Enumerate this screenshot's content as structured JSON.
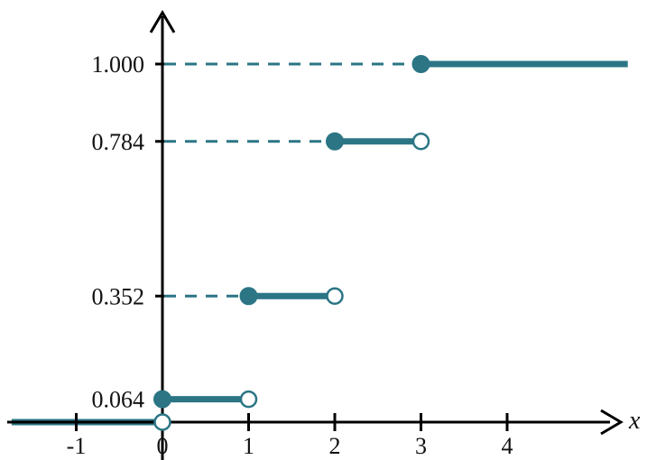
{
  "chart_data": {
    "type": "line",
    "title": "",
    "xlabel": "x",
    "ylabel": "",
    "x_ticks": [
      "-1",
      "0",
      "1",
      "2",
      "3",
      "4"
    ],
    "y_ticks": [
      "0.064",
      "0.352",
      "0.784",
      "1.000"
    ],
    "xlim": [
      -1.75,
      5.4
    ],
    "ylim": [
      -0.11,
      1.22
    ],
    "grid": false,
    "series": [
      {
        "step_segments": [
          {
            "x_start": -1.75,
            "x_end": 0,
            "y": 0,
            "closed_start": false,
            "open_end": true
          },
          {
            "x_start": 0,
            "x_end": 1,
            "y": 0.064,
            "closed_start": true,
            "open_end": true
          },
          {
            "x_start": 1,
            "x_end": 2,
            "y": 0.352,
            "closed_start": true,
            "open_end": true
          },
          {
            "x_start": 2,
            "x_end": 3,
            "y": 0.784,
            "closed_start": true,
            "open_end": true
          },
          {
            "x_start": 3,
            "x_end": 5.4,
            "y": 1.0,
            "closed_start": true,
            "open_end": false
          }
        ]
      }
    ],
    "colors": {
      "series": "#2b7585",
      "axis": "#000000",
      "open_fill": "#ffffff"
    }
  }
}
